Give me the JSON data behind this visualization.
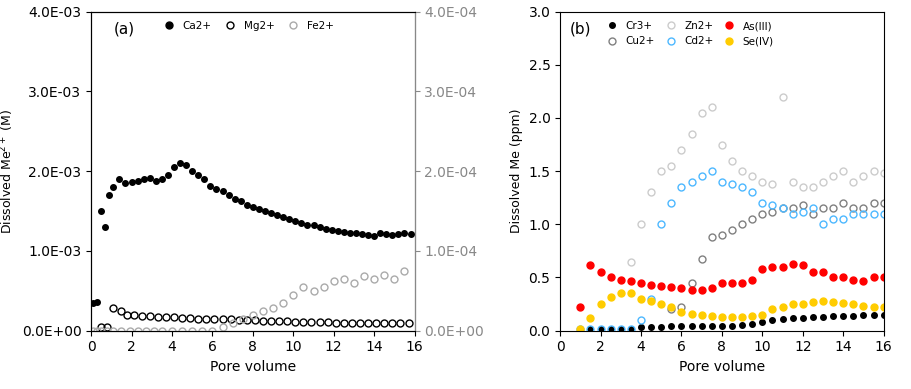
{
  "panel_a": {
    "title": "(a)",
    "xlabel": "Pore volume",
    "ylabel_left": "Dissolved Me²⁺ (M)",
    "ylabel_right": "",
    "ylim_left": [
      0,
      0.004
    ],
    "ylim_right": [
      0,
      0.0004
    ],
    "yticks_left": [
      0,
      0.001,
      0.002,
      0.003,
      0.004
    ],
    "yticks_right": [
      0,
      0.0001,
      0.0002,
      0.0003,
      0.0004
    ],
    "ytick_labels_left": [
      "0.0E+00",
      "1.0E-03",
      "2.0E-03",
      "3.0E-03",
      "4.0E-03"
    ],
    "ytick_labels_right": [
      "0.0E+00",
      "1.0E-04",
      "2.0E-04",
      "3.0E-04",
      "4.0E-04"
    ],
    "xlim": [
      0,
      16
    ],
    "xticks": [
      0,
      2,
      4,
      6,
      8,
      10,
      12,
      14,
      16
    ],
    "Ca2+": {
      "x": [
        0.1,
        0.3,
        0.5,
        0.7,
        0.9,
        1.1,
        1.4,
        1.7,
        2.0,
        2.3,
        2.6,
        2.9,
        3.2,
        3.5,
        3.8,
        4.1,
        4.4,
        4.7,
        5.0,
        5.3,
        5.6,
        5.9,
        6.2,
        6.5,
        6.8,
        7.1,
        7.4,
        7.7,
        8.0,
        8.3,
        8.6,
        8.9,
        9.2,
        9.5,
        9.8,
        10.1,
        10.4,
        10.7,
        11.0,
        11.3,
        11.6,
        11.9,
        12.2,
        12.5,
        12.8,
        13.1,
        13.4,
        13.7,
        14.0,
        14.3,
        14.6,
        14.9,
        15.2,
        15.5,
        15.8
      ],
      "y": [
        0.00035,
        0.00036,
        0.0015,
        0.0013,
        0.0017,
        0.0018,
        0.0019,
        0.00185,
        0.00187,
        0.00188,
        0.0019,
        0.00192,
        0.00188,
        0.0019,
        0.00195,
        0.00205,
        0.0021,
        0.00208,
        0.002,
        0.00195,
        0.0019,
        0.00182,
        0.00178,
        0.00175,
        0.0017,
        0.00165,
        0.00162,
        0.00158,
        0.00155,
        0.00152,
        0.0015,
        0.00147,
        0.00145,
        0.00143,
        0.0014,
        0.00138,
        0.00135,
        0.00133,
        0.00132,
        0.0013,
        0.00128,
        0.00126,
        0.00125,
        0.00124,
        0.00123,
        0.00122,
        0.00121,
        0.0012,
        0.00119,
        0.00122,
        0.00121,
        0.0012,
        0.00121,
        0.00122,
        0.00121
      ],
      "color": "#000000",
      "marker": "o",
      "fillstyle": "full",
      "markersize": 4,
      "label": "Ca2+"
    },
    "Mg2+": {
      "x": [
        0.5,
        0.8,
        1.1,
        1.5,
        1.8,
        2.1,
        2.5,
        2.9,
        3.3,
        3.7,
        4.1,
        4.5,
        4.9,
        5.3,
        5.7,
        6.1,
        6.5,
        6.9,
        7.3,
        7.7,
        8.1,
        8.5,
        8.9,
        9.3,
        9.7,
        10.1,
        10.5,
        10.9,
        11.3,
        11.7,
        12.1,
        12.5,
        12.9,
        13.3,
        13.7,
        14.1,
        14.5,
        14.9,
        15.3,
        15.7
      ],
      "y": [
        5e-05,
        5e-05,
        0.000285,
        0.00025,
        0.000195,
        0.00019,
        0.000185,
        0.00018,
        0.000175,
        0.000172,
        0.000165,
        0.00016,
        0.000155,
        0.000152,
        0.00015,
        0.000148,
        0.000145,
        0.000142,
        0.000138,
        0.000135,
        0.00013,
        0.000125,
        0.000122,
        0.000118,
        0.000115,
        0.000112,
        0.00011,
        0.000108,
        0.000106,
        0.000104,
        0.000102,
        0.0001,
        9.8e-05,
        9.7e-05,
        9.6e-05,
        9.5e-05,
        9.5e-05,
        9.8e-05,
        0.0001,
        0.000102
      ],
      "color": "#000000",
      "marker": "o",
      "fillstyle": "none",
      "markersize": 5,
      "label": "Mg2+"
    },
    "Fe2+": {
      "x": [
        0.1,
        0.3,
        0.5,
        0.8,
        1.1,
        1.5,
        1.9,
        2.3,
        2.7,
        3.1,
        3.5,
        4.0,
        4.5,
        5.0,
        5.5,
        6.0,
        6.5,
        7.0,
        7.5,
        8.0,
        8.5,
        9.0,
        9.5,
        10.0,
        10.5,
        11.0,
        11.5,
        12.0,
        12.5,
        13.0,
        13.5,
        14.0,
        14.5,
        15.0,
        15.5
      ],
      "y": [
        0,
        0,
        0,
        0,
        0,
        0,
        0,
        0,
        0,
        0,
        0,
        0,
        0,
        0,
        0,
        0,
        5e-06,
        1e-05,
        1.5e-05,
        2e-05,
        2.5e-05,
        2.8e-05,
        3.5e-05,
        4.5e-05,
        5.5e-05,
        5e-05,
        5.5e-05,
        6.2e-05,
        6.5e-05,
        6e-05,
        6.8e-05,
        6.5e-05,
        7e-05,
        6.5e-05,
        7.5e-05
      ],
      "color": "#aaaaaa",
      "marker": "o",
      "fillstyle": "none",
      "markersize": 5,
      "label": "Fe2+"
    }
  },
  "panel_b": {
    "title": "(b)",
    "xlabel": "Pore volume",
    "ylabel_left": "Dissolved Me (ppm)",
    "ylim": [
      0,
      3.0
    ],
    "yticks": [
      0,
      0.5,
      1.0,
      1.5,
      2.0,
      2.5,
      3.0
    ],
    "xlim": [
      0,
      16
    ],
    "xticks": [
      0,
      2,
      4,
      6,
      8,
      10,
      12,
      14,
      16
    ],
    "Cr3+": {
      "x": [
        1.0,
        1.5,
        2.0,
        2.5,
        3.0,
        3.5,
        4.0,
        4.5,
        5.0,
        5.5,
        6.0,
        6.5,
        7.0,
        7.5,
        8.0,
        8.5,
        9.0,
        9.5,
        10.0,
        10.5,
        11.0,
        11.5,
        12.0,
        12.5,
        13.0,
        13.5,
        14.0,
        14.5,
        15.0,
        15.5,
        16.0
      ],
      "y": [
        0.02,
        0.02,
        0.02,
        0.02,
        0.02,
        0.02,
        0.03,
        0.03,
        0.03,
        0.04,
        0.04,
        0.04,
        0.04,
        0.04,
        0.04,
        0.04,
        0.05,
        0.06,
        0.08,
        0.1,
        0.11,
        0.12,
        0.12,
        0.13,
        0.13,
        0.14,
        0.14,
        0.14,
        0.15,
        0.15,
        0.15
      ],
      "color": "#000000",
      "marker": "o",
      "fillstyle": "full",
      "markersize": 4,
      "label": "Cr3+"
    },
    "Cu2+": {
      "x": [
        5.5,
        6.0,
        6.5,
        7.0,
        7.5,
        8.0,
        8.5,
        9.0,
        9.5,
        10.0,
        10.5,
        11.0,
        11.5,
        12.0,
        12.5,
        13.0,
        13.5,
        14.0,
        14.5,
        15.0,
        15.5,
        16.0
      ],
      "y": [
        0.2,
        0.22,
        0.45,
        0.67,
        0.88,
        0.9,
        0.95,
        1.0,
        1.05,
        1.1,
        1.12,
        1.15,
        1.15,
        1.18,
        1.1,
        1.15,
        1.15,
        1.2,
        1.15,
        1.15,
        1.2,
        1.2
      ],
      "color": "#808080",
      "marker": "o",
      "fillstyle": "none",
      "markersize": 5,
      "label": "Cu2+"
    },
    "Zn2+": {
      "x": [
        3.5,
        4.0,
        4.5,
        5.0,
        5.5,
        6.0,
        6.5,
        7.0,
        7.5,
        8.0,
        8.5,
        9.0,
        9.5,
        10.0,
        10.5,
        11.0,
        11.5,
        12.0,
        12.5,
        13.0,
        13.5,
        14.0,
        14.5,
        15.0,
        15.5,
        16.0
      ],
      "y": [
        0.65,
        1.0,
        1.3,
        1.5,
        1.55,
        1.7,
        1.85,
        2.05,
        2.1,
        1.75,
        1.6,
        1.5,
        1.45,
        1.4,
        1.38,
        2.2,
        1.4,
        1.35,
        1.35,
        1.4,
        1.45,
        1.5,
        1.4,
        1.45,
        1.5,
        1.48
      ],
      "color": "#cccccc",
      "marker": "o",
      "fillstyle": "none",
      "markersize": 5,
      "label": "Zn2+"
    },
    "Cd2+": {
      "x": [
        1.0,
        1.5,
        2.0,
        2.5,
        3.0,
        3.5,
        4.0,
        4.5,
        5.0,
        5.5,
        6.0,
        6.5,
        7.0,
        7.5,
        8.0,
        8.5,
        9.0,
        9.5,
        10.0,
        10.5,
        11.0,
        11.5,
        12.0,
        12.5,
        13.0,
        13.5,
        14.0,
        14.5,
        15.0,
        15.5,
        16.0
      ],
      "y": [
        0.02,
        0.02,
        0.02,
        0.02,
        0.02,
        0.02,
        0.1,
        0.3,
        1.0,
        1.2,
        1.35,
        1.4,
        1.45,
        1.5,
        1.4,
        1.38,
        1.35,
        1.3,
        1.2,
        1.18,
        1.15,
        1.1,
        1.12,
        1.15,
        1.0,
        1.05,
        1.05,
        1.1,
        1.1,
        1.1,
        1.1
      ],
      "color": "#4db8ff",
      "marker": "o",
      "fillstyle": "none",
      "markersize": 5,
      "label": "Cd2+"
    },
    "As(III)": {
      "x": [
        1.0,
        1.5,
        2.0,
        2.5,
        3.0,
        3.5,
        4.0,
        4.5,
        5.0,
        5.5,
        6.0,
        6.5,
        7.0,
        7.5,
        8.0,
        8.5,
        9.0,
        9.5,
        10.0,
        10.5,
        11.0,
        11.5,
        12.0,
        12.5,
        13.0,
        13.5,
        14.0,
        14.5,
        15.0,
        15.5,
        16.0
      ],
      "y": [
        0.22,
        0.62,
        0.55,
        0.5,
        0.48,
        0.47,
        0.45,
        0.43,
        0.42,
        0.41,
        0.4,
        0.38,
        0.38,
        0.4,
        0.45,
        0.45,
        0.45,
        0.48,
        0.58,
        0.6,
        0.6,
        0.63,
        0.62,
        0.55,
        0.55,
        0.5,
        0.5,
        0.48,
        0.47,
        0.5,
        0.5
      ],
      "color": "#ff0000",
      "marker": "o",
      "fillstyle": "full",
      "markersize": 5,
      "label": "As(III)"
    },
    "Se(IV)": {
      "x": [
        1.0,
        1.5,
        2.0,
        2.5,
        3.0,
        3.5,
        4.0,
        4.5,
        5.0,
        5.5,
        6.0,
        6.5,
        7.0,
        7.5,
        8.0,
        8.5,
        9.0,
        9.5,
        10.0,
        10.5,
        11.0,
        11.5,
        12.0,
        12.5,
        13.0,
        13.5,
        14.0,
        14.5,
        15.0,
        15.5,
        16.0
      ],
      "y": [
        0.02,
        0.12,
        0.25,
        0.32,
        0.35,
        0.35,
        0.3,
        0.28,
        0.25,
        0.22,
        0.18,
        0.16,
        0.15,
        0.14,
        0.13,
        0.13,
        0.13,
        0.14,
        0.15,
        0.2,
        0.22,
        0.25,
        0.25,
        0.27,
        0.28,
        0.27,
        0.26,
        0.25,
        0.23,
        0.22,
        0.22
      ],
      "color": "#ffcc00",
      "marker": "o",
      "fillstyle": "full",
      "markersize": 5,
      "label": "Se(IV)"
    }
  }
}
